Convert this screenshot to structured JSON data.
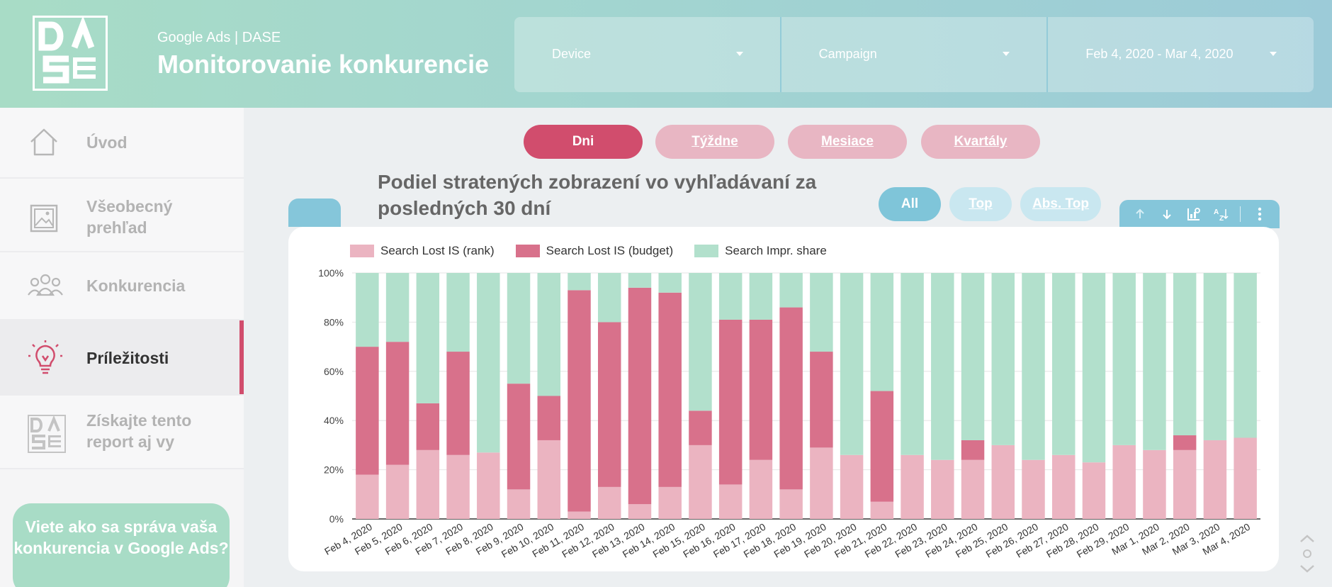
{
  "header": {
    "subtitle": "Google Ads | DASE",
    "title": "Monitorovanie konkurencie",
    "filters": [
      {
        "label": "Device"
      },
      {
        "label": "Campaign"
      },
      {
        "label": "Feb 4, 2020 - Mar 4, 2020"
      }
    ]
  },
  "logo": {
    "letters": [
      "D",
      "A",
      "S",
      "E"
    ],
    "icon": "dase-logo"
  },
  "sidebar": {
    "items": [
      {
        "label": "Úvod",
        "icon": "home-icon"
      },
      {
        "label": "Všeobecný prehľad",
        "icon": "image-icon"
      },
      {
        "label": "Konkurencia",
        "icon": "people-icon"
      },
      {
        "label": "Príležitosti",
        "icon": "lightbulb-icon",
        "active": true
      },
      {
        "label": "Získajte tento report aj vy",
        "icon": "dase-logo-icon"
      }
    ],
    "cta": "Viete ako sa správa vaša konkurencia v Google Ads?"
  },
  "period_tabs": [
    {
      "label": "Dni",
      "active": true
    },
    {
      "label": "Týždne"
    },
    {
      "label": "Mesiace"
    },
    {
      "label": "Kvartály"
    }
  ],
  "chart_filters": [
    {
      "label": "All",
      "active": true
    },
    {
      "label": "Top"
    },
    {
      "label": "Abs. Top"
    }
  ],
  "toolbar": {
    "icons": [
      "arrow-up-icon",
      "arrow-down-icon",
      "drill-chart-icon",
      "sort-az-icon",
      "more-vert-icon"
    ]
  },
  "colors": {
    "rank": "#ebb4c1",
    "budget": "#d8718b",
    "impr": "#b2e0cc",
    "accent_pink": "#d14d6d",
    "accent_blue": "#85c6da"
  },
  "chart_data": {
    "type": "bar",
    "stacked": true,
    "title": "Podiel stratených zobrazení vo vyhľadávaní za posledných 30 dní",
    "categories": [
      "Feb 4, 2020",
      "Feb 5, 2020",
      "Feb 6, 2020",
      "Feb 7, 2020",
      "Feb 8, 2020",
      "Feb 9, 2020",
      "Feb 10, 2020",
      "Feb 11, 2020",
      "Feb 12, 2020",
      "Feb 13, 2020",
      "Feb 14, 2020",
      "Feb 15, 2020",
      "Feb 16, 2020",
      "Feb 17, 2020",
      "Feb 18, 2020",
      "Feb 19, 2020",
      "Feb 20, 2020",
      "Feb 21, 2020",
      "Feb 22, 2020",
      "Feb 23, 2020",
      "Feb 24, 2020",
      "Feb 25, 2020",
      "Feb 26, 2020",
      "Feb 27, 2020",
      "Feb 28, 2020",
      "Feb 29, 2020",
      "Mar 1, 2020",
      "Mar 2, 2020",
      "Mar 3, 2020",
      "Mar 4, 2020"
    ],
    "series": [
      {
        "name": "Search Lost IS (rank)",
        "values": [
          18,
          22,
          28,
          26,
          27,
          12,
          32,
          3,
          13,
          6,
          13,
          30,
          14,
          24,
          12,
          29,
          26,
          7,
          26,
          24,
          24,
          30,
          24,
          26,
          23,
          30,
          28,
          28,
          32,
          33
        ]
      },
      {
        "name": "Search Lost IS (budget)",
        "values": [
          52,
          50,
          19,
          42,
          0,
          43,
          18,
          90,
          67,
          88,
          79,
          14,
          67,
          57,
          74,
          39,
          0,
          45,
          0,
          0,
          8,
          0,
          0,
          0,
          0,
          0,
          0,
          6,
          0,
          0
        ]
      },
      {
        "name": "Search Impr. share",
        "values": [
          30,
          28,
          53,
          32,
          73,
          45,
          50,
          7,
          20,
          6,
          8,
          56,
          19,
          19,
          14,
          32,
          74,
          48,
          74,
          76,
          68,
          70,
          76,
          74,
          77,
          70,
          72,
          66,
          68,
          67
        ]
      }
    ],
    "yticks": [
      "0%",
      "20%",
      "40%",
      "60%",
      "80%",
      "100%"
    ],
    "ylim": [
      0,
      100
    ],
    "legend_position": "top-left",
    "grid": true
  }
}
